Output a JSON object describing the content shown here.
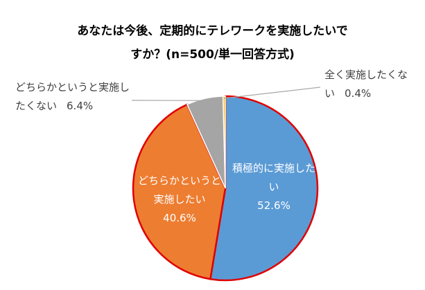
{
  "chart_data": {
    "type": "pie",
    "title": [
      "あなたは今後、定期的にテレワークを実施したいで",
      "すか？(n=500/単一回答方式)"
    ],
    "categories": [
      "積極的に実施したい",
      "どちらかというと実施したい",
      "どちらかというと実施したくない",
      "全く実施したくない"
    ],
    "values": [
      52.6,
      40.6,
      6.4,
      0.4
    ],
    "value_labels": [
      "52.6%",
      "40.6%",
      "6.4%",
      "0.4%"
    ],
    "colors": [
      "#5b9bd5",
      "#ed7d31",
      "#a5a5a5",
      "#ffc000"
    ],
    "edgecolors": [
      "#e00000",
      "#e00000",
      "#ffffff",
      "#ffffff"
    ]
  }
}
